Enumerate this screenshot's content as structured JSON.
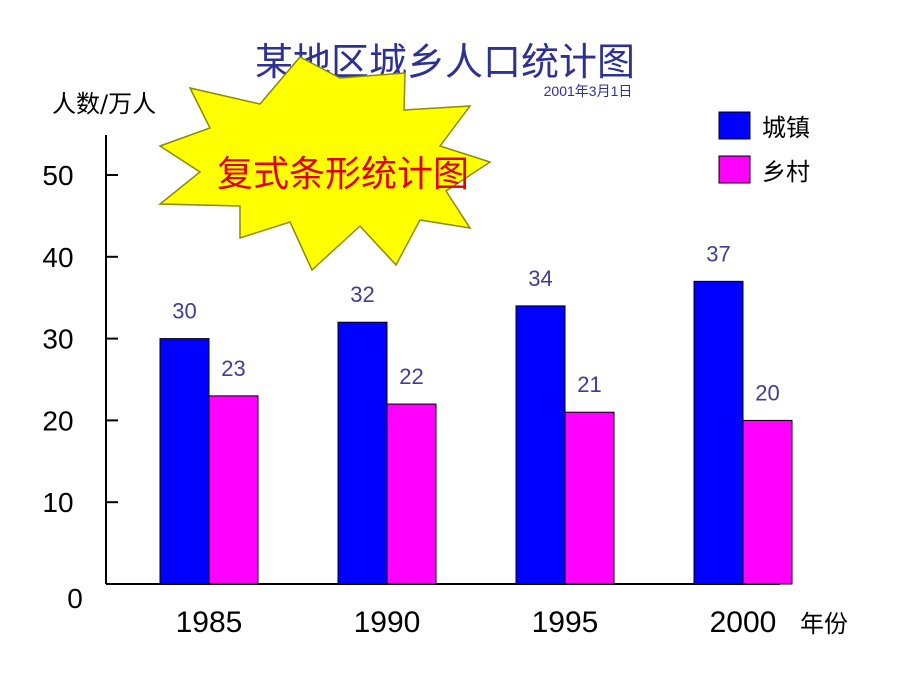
{
  "chart_data": {
    "type": "bar",
    "title": "某地区城乡人口统计图",
    "subtitle": "2001年3月1日",
    "ylabel": "人数/万人",
    "xlabel": "年份",
    "ylim": [
      0,
      50
    ],
    "yticks": [
      0,
      10,
      20,
      30,
      40,
      50
    ],
    "categories": [
      "1985",
      "1990",
      "1995",
      "2000"
    ],
    "series": [
      {
        "name": "城镇",
        "values": [
          30,
          32,
          34,
          37
        ],
        "color": "#0000ff"
      },
      {
        "name": "乡村",
        "values": [
          23,
          22,
          21,
          20
        ],
        "color": "#ff00ff"
      }
    ],
    "data_labels": [
      [
        "30",
        "32",
        "34",
        "37"
      ],
      [
        "23",
        "22",
        "21",
        "20"
      ]
    ],
    "legend_position": "top-right",
    "grid": false,
    "annotation": {
      "text": "复式条形统计图",
      "shape": "starburst",
      "fill": "#ffff00",
      "text_color": "#e00000"
    }
  }
}
